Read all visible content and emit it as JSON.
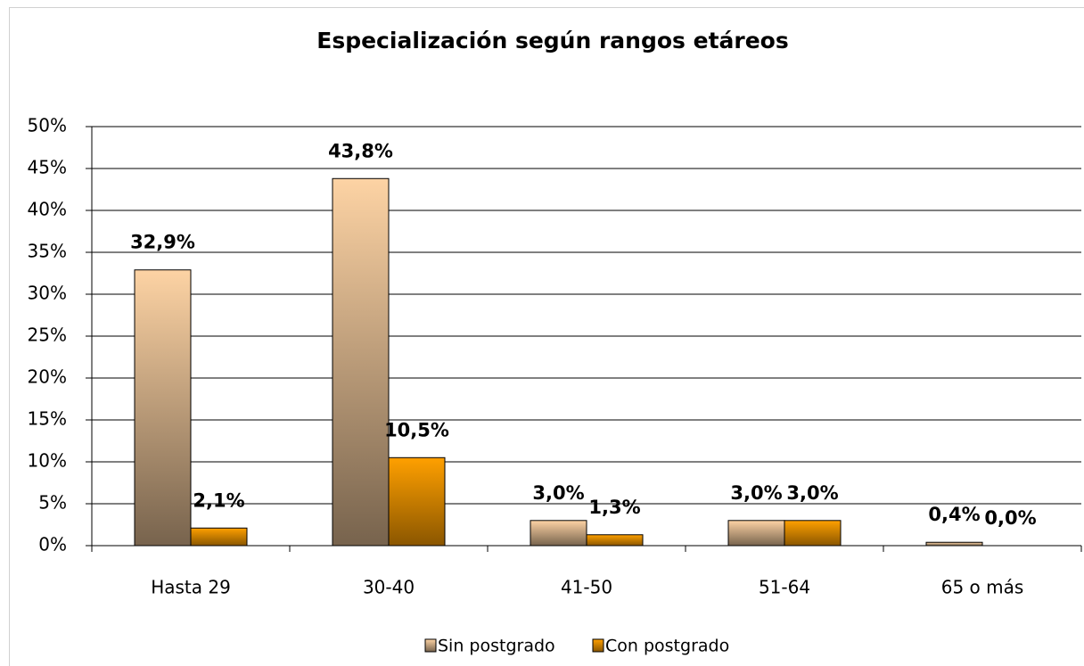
{
  "chart_data": {
    "type": "bar",
    "title": "Especialización según rangos etáreos",
    "categories": [
      "Hasta 29",
      "30-40",
      "41-50",
      "51-64",
      "65 o más"
    ],
    "series": [
      {
        "name": "Sin postgrado",
        "color": "#fdd3a4",
        "values": [
          32.9,
          43.8,
          3.0,
          3.0,
          0.4
        ],
        "value_labels": [
          "32,9%",
          "43,8%",
          "3,0%",
          "3,0%",
          "0,4%"
        ]
      },
      {
        "name": "Con postgrado",
        "color": "#ffa000",
        "values": [
          2.1,
          10.5,
          1.3,
          3.0,
          0.0
        ],
        "value_labels": [
          "2,1%",
          "10,5%",
          "1,3%",
          "3,0%",
          "0,0%"
        ]
      }
    ],
    "ylim": [
      0,
      50
    ],
    "yticks": [
      {
        "value": 0,
        "label": "0%"
      },
      {
        "value": 5,
        "label": "5%"
      },
      {
        "value": 10,
        "label": "10%"
      },
      {
        "value": 15,
        "label": "15%"
      },
      {
        "value": 20,
        "label": "20%"
      },
      {
        "value": 25,
        "label": "25%"
      },
      {
        "value": 30,
        "label": "30%"
      },
      {
        "value": 35,
        "label": "35%"
      },
      {
        "value": 40,
        "label": "40%"
      },
      {
        "value": 45,
        "label": "45%"
      },
      {
        "value": 50,
        "label": "50%"
      }
    ],
    "grid": true,
    "legend": "bottom"
  }
}
